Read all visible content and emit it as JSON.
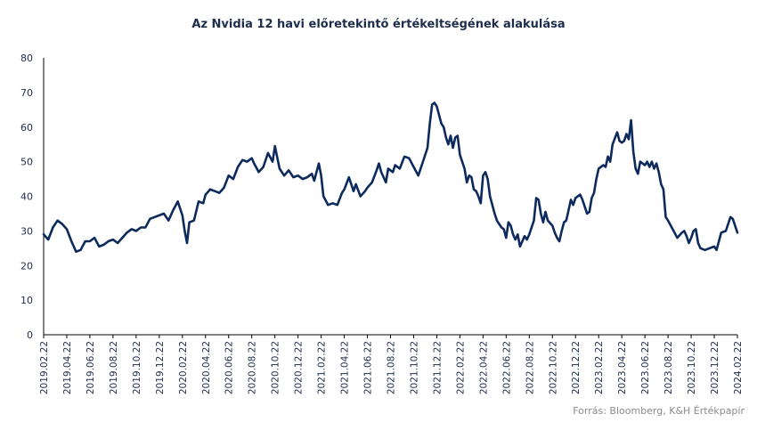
{
  "chart_data": {
    "type": "line",
    "title": "Az Nvidia 12 havi előretekintő értékeltségének alakulása",
    "xlabel": "",
    "ylabel": "",
    "ylim": [
      0,
      80
    ],
    "yticks": [
      0,
      10,
      20,
      30,
      40,
      50,
      60,
      70,
      80
    ],
    "xtick_labels": [
      "2019.02.22",
      "2019.04.22",
      "2019.06.22",
      "2019.08.22",
      "2019.10.22",
      "2019.12.22",
      "2020.02.22",
      "2020.04.22",
      "2020.06.22",
      "2020.08.22",
      "2020.10.22",
      "2020.12.22",
      "2021.02.22",
      "2021.04.22",
      "2021.06.22",
      "2021.08.22",
      "2021.10.22",
      "2021.12.22",
      "2022.02.22",
      "2022.04.22",
      "2022.06.22",
      "2022.08.22",
      "2022.10.22",
      "2022.12.22",
      "2023.02.22",
      "2023.04.22",
      "2023.06.22",
      "2023.08.22",
      "2023.10.22",
      "2023.12.22",
      "2024.02.22"
    ],
    "grid": false,
    "line_color": "#0d2a5c",
    "series": [
      {
        "name": "",
        "values": [
          [
            0,
            29
          ],
          [
            0.2,
            27.5
          ],
          [
            0.4,
            31
          ],
          [
            0.6,
            33
          ],
          [
            0.8,
            32
          ],
          [
            1.0,
            30.5
          ],
          [
            1.2,
            27
          ],
          [
            1.4,
            24
          ],
          [
            1.6,
            24.5
          ],
          [
            1.8,
            27
          ],
          [
            2.0,
            27
          ],
          [
            2.2,
            28
          ],
          [
            2.4,
            25.5
          ],
          [
            2.6,
            26
          ],
          [
            2.8,
            27
          ],
          [
            3.0,
            27.5
          ],
          [
            3.2,
            26.5
          ],
          [
            3.4,
            28
          ],
          [
            3.6,
            29.5
          ],
          [
            3.8,
            30.5
          ],
          [
            4.0,
            30
          ],
          [
            4.2,
            31
          ],
          [
            4.4,
            31
          ],
          [
            4.6,
            33.5
          ],
          [
            4.8,
            34
          ],
          [
            5.0,
            34.5
          ],
          [
            5.2,
            35
          ],
          [
            5.4,
            33
          ],
          [
            5.6,
            36
          ],
          [
            5.8,
            38.5
          ],
          [
            6.0,
            34.5
          ],
          [
            6.1,
            30
          ],
          [
            6.2,
            26.5
          ],
          [
            6.3,
            32.5
          ],
          [
            6.5,
            33
          ],
          [
            6.7,
            38.5
          ],
          [
            6.9,
            38
          ],
          [
            7.0,
            40.5
          ],
          [
            7.2,
            42
          ],
          [
            7.4,
            41.5
          ],
          [
            7.6,
            41
          ],
          [
            7.8,
            42.5
          ],
          [
            8.0,
            46
          ],
          [
            8.2,
            45
          ],
          [
            8.4,
            48.5
          ],
          [
            8.6,
            50.5
          ],
          [
            8.8,
            50
          ],
          [
            9.0,
            51
          ],
          [
            9.1,
            49.5
          ],
          [
            9.3,
            47
          ],
          [
            9.5,
            48.5
          ],
          [
            9.7,
            52.5
          ],
          [
            9.9,
            50
          ],
          [
            10.0,
            54.5
          ],
          [
            10.2,
            48
          ],
          [
            10.4,
            46
          ],
          [
            10.6,
            47.5
          ],
          [
            10.8,
            45.5
          ],
          [
            11.0,
            46
          ],
          [
            11.2,
            45
          ],
          [
            11.4,
            45.5
          ],
          [
            11.6,
            46.5
          ],
          [
            11.7,
            44.5
          ],
          [
            11.9,
            49.5
          ],
          [
            12.0,
            46
          ],
          [
            12.1,
            40
          ],
          [
            12.3,
            37.5
          ],
          [
            12.5,
            38
          ],
          [
            12.7,
            37.5
          ],
          [
            12.9,
            41
          ],
          [
            13.0,
            42
          ],
          [
            13.2,
            45.5
          ],
          [
            13.4,
            41.5
          ],
          [
            13.5,
            43.5
          ],
          [
            13.7,
            40
          ],
          [
            13.9,
            41.5
          ],
          [
            14.0,
            42.5
          ],
          [
            14.2,
            44
          ],
          [
            14.4,
            47.5
          ],
          [
            14.5,
            49.5
          ],
          [
            14.6,
            47
          ],
          [
            14.8,
            44
          ],
          [
            14.9,
            48
          ],
          [
            15.1,
            47
          ],
          [
            15.2,
            49
          ],
          [
            15.4,
            48
          ],
          [
            15.6,
            51.5
          ],
          [
            15.8,
            51
          ],
          [
            16.0,
            48.5
          ],
          [
            16.2,
            46
          ],
          [
            16.4,
            50
          ],
          [
            16.6,
            54
          ],
          [
            16.7,
            61
          ],
          [
            16.8,
            66.5
          ],
          [
            16.9,
            67
          ],
          [
            17.0,
            66
          ],
          [
            17.2,
            61
          ],
          [
            17.3,
            60
          ],
          [
            17.4,
            57
          ],
          [
            17.5,
            55
          ],
          [
            17.6,
            57.5
          ],
          [
            17.7,
            54
          ],
          [
            17.8,
            57
          ],
          [
            17.9,
            57.5
          ],
          [
            18.0,
            52
          ],
          [
            18.2,
            48
          ],
          [
            18.3,
            44
          ],
          [
            18.4,
            46
          ],
          [
            18.5,
            45.5
          ],
          [
            18.6,
            42
          ],
          [
            18.7,
            41.5
          ],
          [
            18.8,
            40
          ],
          [
            18.9,
            38
          ],
          [
            19.0,
            46
          ],
          [
            19.1,
            47
          ],
          [
            19.2,
            45
          ],
          [
            19.3,
            40
          ],
          [
            19.5,
            35
          ],
          [
            19.6,
            33
          ],
          [
            19.8,
            31
          ],
          [
            19.9,
            30.5
          ],
          [
            20.0,
            28
          ],
          [
            20.1,
            32.5
          ],
          [
            20.2,
            31.5
          ],
          [
            20.3,
            29
          ],
          [
            20.4,
            27.5
          ],
          [
            20.5,
            29
          ],
          [
            20.6,
            25.5
          ],
          [
            20.8,
            28.5
          ],
          [
            20.9,
            27.5
          ],
          [
            21.0,
            29
          ],
          [
            21.1,
            31
          ],
          [
            21.2,
            33
          ],
          [
            21.3,
            39.5
          ],
          [
            21.4,
            39
          ],
          [
            21.5,
            35
          ],
          [
            21.6,
            32.5
          ],
          [
            21.7,
            35.5
          ],
          [
            21.8,
            33
          ],
          [
            22.0,
            31.5
          ],
          [
            22.1,
            29.5
          ],
          [
            22.2,
            28
          ],
          [
            22.3,
            27
          ],
          [
            22.4,
            30
          ],
          [
            22.5,
            32.5
          ],
          [
            22.6,
            33
          ],
          [
            22.7,
            36
          ],
          [
            22.8,
            39
          ],
          [
            22.9,
            37.5
          ],
          [
            23.0,
            39.5
          ],
          [
            23.2,
            40.5
          ],
          [
            23.3,
            39
          ],
          [
            23.4,
            37
          ],
          [
            23.5,
            35
          ],
          [
            23.6,
            35.5
          ],
          [
            23.7,
            39.5
          ],
          [
            23.8,
            41
          ],
          [
            23.9,
            45
          ],
          [
            24.0,
            48
          ],
          [
            24.2,
            49
          ],
          [
            24.3,
            48.5
          ],
          [
            24.4,
            51.5
          ],
          [
            24.5,
            50
          ],
          [
            24.6,
            55
          ],
          [
            24.8,
            58.5
          ],
          [
            24.9,
            56
          ],
          [
            25.0,
            55.5
          ],
          [
            25.1,
            56
          ],
          [
            25.2,
            58
          ],
          [
            25.3,
            56.5
          ],
          [
            25.4,
            62
          ],
          [
            25.5,
            53
          ],
          [
            25.6,
            48
          ],
          [
            25.7,
            46.5
          ],
          [
            25.8,
            50
          ],
          [
            26.0,
            49
          ],
          [
            26.1,
            50
          ],
          [
            26.2,
            48.5
          ],
          [
            26.3,
            50
          ],
          [
            26.4,
            48
          ],
          [
            26.5,
            49.5
          ],
          [
            26.6,
            47
          ],
          [
            26.7,
            43.5
          ],
          [
            26.8,
            42
          ],
          [
            26.9,
            34
          ],
          [
            27.0,
            33
          ],
          [
            27.2,
            30.5
          ],
          [
            27.4,
            28
          ],
          [
            27.6,
            29.5
          ],
          [
            27.7,
            30
          ],
          [
            27.8,
            28.5
          ],
          [
            27.9,
            26.5
          ],
          [
            28.0,
            28
          ],
          [
            28.1,
            30
          ],
          [
            28.2,
            30.5
          ],
          [
            28.3,
            26.5
          ],
          [
            28.4,
            25
          ],
          [
            28.6,
            24.5
          ],
          [
            28.8,
            25
          ],
          [
            29.0,
            25.5
          ],
          [
            29.1,
            24.5
          ],
          [
            29.2,
            27
          ],
          [
            29.3,
            29.5
          ],
          [
            29.5,
            30
          ],
          [
            29.6,
            32
          ],
          [
            29.7,
            34
          ],
          [
            29.8,
            33.5
          ],
          [
            30.0,
            29.5
          ]
        ]
      }
    ],
    "source": "Forrás: Bloomberg, K&H Értékpapír"
  }
}
